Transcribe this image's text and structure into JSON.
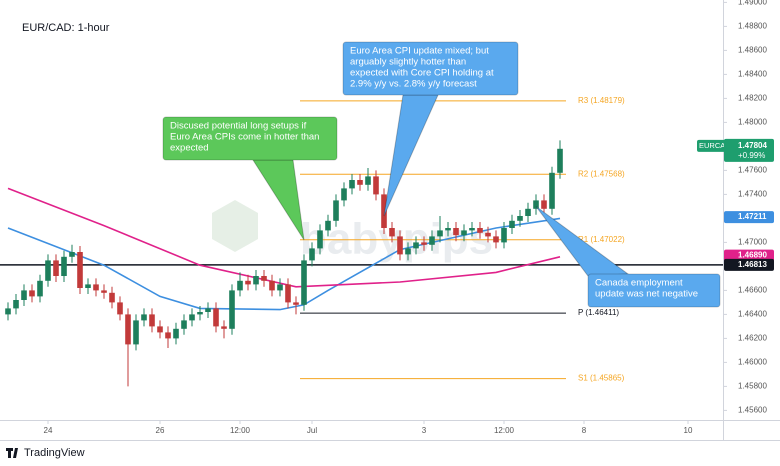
{
  "chart_data": {
    "type": "candlestick",
    "title": "EUR/CAD: 1-hour",
    "watermark": "babypips",
    "brand": "TradingView",
    "up_color": "#1e7f5c",
    "down_color": "#c23a3a",
    "x": [
      0,
      1,
      2,
      3,
      4,
      5,
      6,
      7,
      8,
      9,
      10,
      11,
      12,
      13,
      14,
      15,
      16,
      17,
      18,
      19,
      20,
      21,
      22,
      23,
      24,
      25,
      26,
      27,
      28,
      29,
      30,
      31,
      32,
      33,
      34,
      35,
      36,
      37,
      38,
      39,
      40,
      41,
      42,
      43,
      44,
      45,
      46,
      47,
      48,
      49,
      50,
      51,
      52,
      53,
      54,
      55,
      56,
      57,
      58,
      59,
      60,
      61,
      62,
      63,
      64,
      65,
      66,
      67,
      68,
      69
    ],
    "open": [
      1.464,
      1.4645,
      1.4652,
      1.466,
      1.4655,
      1.4668,
      1.4685,
      1.4672,
      1.4688,
      1.4692,
      1.4662,
      1.4665,
      1.466,
      1.4658,
      1.465,
      1.464,
      1.4615,
      1.4635,
      1.464,
      1.463,
      1.4625,
      1.462,
      1.4628,
      1.4635,
      1.464,
      1.4642,
      1.4645,
      1.463,
      1.4628,
      1.466,
      1.4668,
      1.4665,
      1.4672,
      1.4668,
      1.466,
      1.4665,
      1.465,
      1.4648,
      1.4685,
      1.4695,
      1.471,
      1.4718,
      1.4735,
      1.4745,
      1.4752,
      1.4748,
      1.4755,
      1.474,
      1.4712,
      1.4705,
      1.469,
      1.4695,
      1.47,
      1.4698,
      1.4705,
      1.471,
      1.4712,
      1.4706,
      1.471,
      1.4712,
      1.4708,
      1.4705,
      1.47,
      1.4712,
      1.4718,
      1.4722,
      1.4728,
      1.4735,
      1.4728,
      1.4758
    ],
    "high": [
      1.465,
      1.4657,
      1.4665,
      1.4665,
      1.4673,
      1.469,
      1.469,
      1.4693,
      1.4698,
      1.4697,
      1.467,
      1.467,
      1.4665,
      1.4663,
      1.4655,
      1.4645,
      1.464,
      1.4645,
      1.4645,
      1.4635,
      1.463,
      1.4633,
      1.464,
      1.4645,
      1.4647,
      1.465,
      1.465,
      1.4635,
      1.4665,
      1.4675,
      1.4673,
      1.4677,
      1.4677,
      1.4673,
      1.467,
      1.467,
      1.4655,
      1.469,
      1.47,
      1.4715,
      1.4723,
      1.474,
      1.475,
      1.4757,
      1.4757,
      1.4762,
      1.476,
      1.4745,
      1.4717,
      1.471,
      1.47,
      1.4705,
      1.4705,
      1.471,
      1.4722,
      1.4717,
      1.4717,
      1.4715,
      1.4717,
      1.4717,
      1.4713,
      1.471,
      1.4717,
      1.4723,
      1.4727,
      1.4733,
      1.474,
      1.474,
      1.4763,
      1.4785
    ],
    "low": [
      1.4635,
      1.464,
      1.4647,
      1.465,
      1.465,
      1.4663,
      1.4667,
      1.4667,
      1.4683,
      1.4657,
      1.4657,
      1.4655,
      1.4653,
      1.4645,
      1.4635,
      1.458,
      1.461,
      1.463,
      1.4625,
      1.462,
      1.4612,
      1.4615,
      1.4623,
      1.463,
      1.4635,
      1.4637,
      1.4625,
      1.462,
      1.4623,
      1.4655,
      1.466,
      1.466,
      1.4663,
      1.4655,
      1.4655,
      1.4645,
      1.464,
      1.4643,
      1.468,
      1.469,
      1.4705,
      1.4713,
      1.473,
      1.474,
      1.4743,
      1.4743,
      1.4735,
      1.4707,
      1.47,
      1.4685,
      1.4685,
      1.469,
      1.4693,
      1.4693,
      1.47,
      1.4705,
      1.4701,
      1.4701,
      1.4705,
      1.4703,
      1.47,
      1.4695,
      1.4695,
      1.4707,
      1.4713,
      1.4717,
      1.4723,
      1.4723,
      1.4723,
      1.4753
    ],
    "close": [
      1.4645,
      1.4652,
      1.466,
      1.4655,
      1.4668,
      1.4685,
      1.4672,
      1.4688,
      1.4692,
      1.4662,
      1.4665,
      1.466,
      1.4658,
      1.465,
      1.464,
      1.4615,
      1.4635,
      1.464,
      1.463,
      1.4625,
      1.462,
      1.4628,
      1.4635,
      1.464,
      1.4642,
      1.4645,
      1.463,
      1.4628,
      1.466,
      1.4668,
      1.4665,
      1.4672,
      1.4668,
      1.466,
      1.4665,
      1.465,
      1.4648,
      1.4685,
      1.4695,
      1.471,
      1.4718,
      1.4735,
      1.4745,
      1.4752,
      1.4748,
      1.4755,
      1.474,
      1.4712,
      1.4705,
      1.469,
      1.4695,
      1.47,
      1.4698,
      1.4705,
      1.471,
      1.4712,
      1.4706,
      1.471,
      1.4712,
      1.4708,
      1.4705,
      1.47,
      1.4712,
      1.4718,
      1.4722,
      1.4728,
      1.4735,
      1.4728,
      1.4758,
      1.4778
    ],
    "moving_averages": [
      {
        "color": "#3d8fe0",
        "x": [
          0,
          12,
          19,
          24,
          34,
          37,
          40,
          49,
          61,
          69
        ],
        "values": [
          1.4712,
          1.4681,
          1.4655,
          1.4645,
          1.4644,
          1.4648,
          1.466,
          1.4694,
          1.4712,
          1.472
        ]
      },
      {
        "color": "#e0218a",
        "x": [
          0,
          12,
          24,
          36,
          49,
          61,
          69
        ],
        "values": [
          1.4745,
          1.4714,
          1.4681,
          1.4663,
          1.4667,
          1.4675,
          1.4688
        ]
      }
    ],
    "xlim": [
      -0.5,
      89.5
    ],
    "xticks": [
      {
        "value": 5,
        "label": "24"
      },
      {
        "value": 19,
        "label": "26"
      },
      {
        "value": 29,
        "label": "12:00"
      },
      {
        "value": 38,
        "label": "Jul"
      },
      {
        "value": 52,
        "label": "3"
      },
      {
        "value": 62,
        "label": "12:00"
      },
      {
        "value": 72,
        "label": "8"
      },
      {
        "value": 85,
        "label": "10"
      }
    ],
    "ylim": [
      1.4552,
      1.4902
    ],
    "yticks": [
      {
        "value": 1.456,
        "label": "1.45600"
      },
      {
        "value": 1.458,
        "label": "1.45800"
      },
      {
        "value": 1.46,
        "label": "1.46000"
      },
      {
        "value": 1.462,
        "label": "1.46200"
      },
      {
        "value": 1.464,
        "label": "1.46400"
      },
      {
        "value": 1.466,
        "label": "1.46600"
      },
      {
        "value": 1.468,
        "label": "1.46800"
      },
      {
        "value": 1.47,
        "label": "1.47000"
      },
      {
        "value": 1.472,
        "label": "1.47200"
      },
      {
        "value": 1.474,
        "label": "1.47400"
      },
      {
        "value": 1.476,
        "label": "1.47600"
      },
      {
        "value": 1.478,
        "label": "1.47800"
      },
      {
        "value": 1.48,
        "label": "1.48000"
      },
      {
        "value": 1.482,
        "label": "1.48200"
      },
      {
        "value": 1.484,
        "label": "1.48400"
      },
      {
        "value": 1.486,
        "label": "1.48600"
      },
      {
        "value": 1.488,
        "label": "1.48800"
      },
      {
        "value": 1.49,
        "label": "1.49000"
      }
    ],
    "pivot_color": "#f5a623",
    "levels": [
      {
        "label": "R3 (1.48179)",
        "value": 1.48179,
        "color": "#f5a623"
      },
      {
        "label": "R2 (1.47568)",
        "value": 1.47568,
        "color": "#f5a623"
      },
      {
        "label": "R1 (1.47022)",
        "value": 1.47022,
        "color": "#f5a623"
      },
      {
        "label": "P (1.46411)",
        "value": 1.46411,
        "color": "#131722"
      },
      {
        "label": "S1 (1.45865)",
        "value": 1.45865,
        "color": "#f5a623"
      }
    ],
    "support_line": 1.46813,
    "price_tags": [
      {
        "value": 1.47211,
        "label": "1.47211",
        "color": "#3d8fe0"
      },
      {
        "value": 1.4689,
        "label": "1.46890",
        "color": "#e0218a"
      },
      {
        "value": 1.46813,
        "label": "1.46813",
        "color": "#131722"
      }
    ],
    "last_price": {
      "symbol": "EURCAD",
      "value": 1.47804,
      "label": "1.47804",
      "change": "+0.99%",
      "color": "#1e9e6e"
    },
    "annotations": [
      {
        "lines": [
          "Discused potential long setups if",
          "Euro Area CPIs come in hotter than",
          "expected"
        ],
        "color": "#5cc85a",
        "x": 37,
        "y": 1.4702
      },
      {
        "lines": [
          "Euro Area CPI update mixed; but",
          "arguably slightly hotter than",
          "expected with Core CPI holding at",
          "2.9% y/y vs. 2.8% y/y forecast"
        ],
        "color": "#5aa9ee",
        "x": 47,
        "y": 1.4722
      },
      {
        "lines": [
          "Canada employment",
          "update was net negative"
        ],
        "color": "#5aa9ee",
        "x": 66,
        "y": 1.473
      }
    ]
  }
}
